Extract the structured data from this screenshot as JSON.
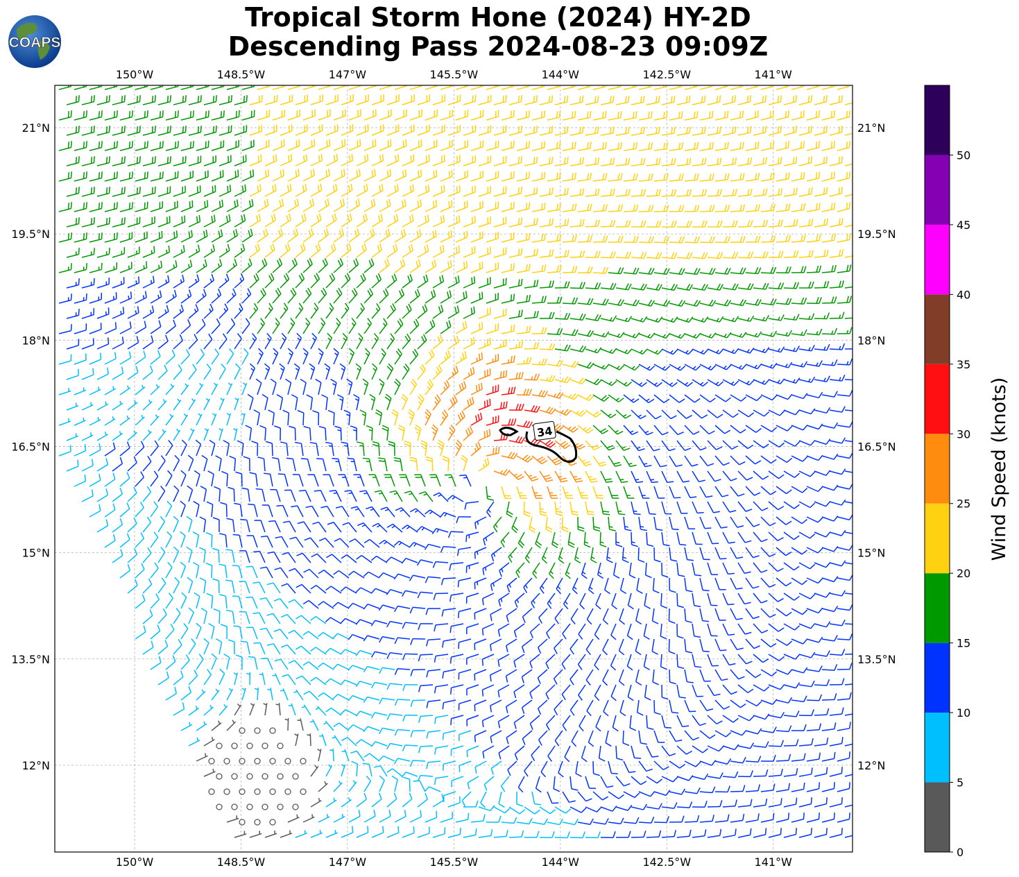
{
  "title": {
    "line1": "Tropical Storm Hone (2024) HY-2D",
    "line2": "Descending Pass 2024-08-23 09:09Z"
  },
  "logo": {
    "text": "COAPS",
    "icon": "globe-icon"
  },
  "axes": {
    "lon_ticks": [
      "150°W",
      "148.5°W",
      "147°W",
      "145.5°W",
      "144°W",
      "142.5°W",
      "141°W"
    ],
    "lat_ticks": [
      "21°N",
      "19.5°N",
      "18°N",
      "16.5°N",
      "15°N",
      "13.5°N",
      "12°N"
    ]
  },
  "contour": {
    "label": "34"
  },
  "colorbar": {
    "label": "Wind Speed (knots)",
    "ticks": [
      "0",
      "5",
      "10",
      "15",
      "20",
      "25",
      "30",
      "35",
      "40",
      "45",
      "50"
    ],
    "bins": [
      {
        "min": 0,
        "max": 5,
        "color": "#595959"
      },
      {
        "min": 5,
        "max": 10,
        "color": "#00bfff"
      },
      {
        "min": 10,
        "max": 15,
        "color": "#0033ff"
      },
      {
        "min": 15,
        "max": 20,
        "color": "#009900"
      },
      {
        "min": 20,
        "max": 25,
        "color": "#ffd111"
      },
      {
        "min": 25,
        "max": 30,
        "color": "#ff8c0f"
      },
      {
        "min": 30,
        "max": 35,
        "color": "#ff0f0f"
      },
      {
        "min": 35,
        "max": 40,
        "color": "#823d29"
      },
      {
        "min": 40,
        "max": 45,
        "color": "#ff00ff"
      },
      {
        "min": 45,
        "max": 50,
        "color": "#8400b3"
      },
      {
        "min": 50,
        "max": 55,
        "color": "#2d005b"
      }
    ]
  },
  "chart_data": {
    "type": "wind-barb-map",
    "storm_center": {
      "lon": -145.1,
      "lat": 15.95
    },
    "lon_range": [
      -151.15,
      -139.9
    ],
    "lat_range": [
      10.8,
      21.6
    ],
    "gridlines": true,
    "contour_34kt_region": "north of center, around 144.4°W 16.6°N"
  }
}
